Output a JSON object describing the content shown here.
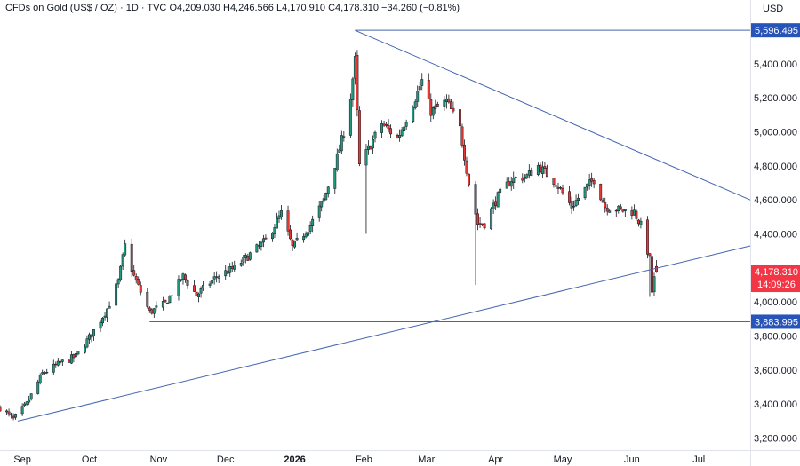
{
  "legend": {
    "symbol": "CFDs on Gold (US$ / OZ)",
    "interval": "1D",
    "source": "TVC",
    "sep": "·",
    "open": "O4,209.030",
    "high": "H4,246.566",
    "low": "L4,170.910",
    "close": "C4,178.310",
    "change": "−34.260 (−0.81%)"
  },
  "currency": "USD",
  "colors": {
    "up": "#22977a",
    "down": "#e53935",
    "trend": "#4565b0",
    "level_badge": "#2853b8",
    "price_badge": "#f23645"
  },
  "chart_data": {
    "type": "candlestick",
    "y_axis": {
      "ticks": [
        3200,
        3400,
        3600,
        3800,
        4000,
        4200,
        4400,
        4600,
        4800,
        5000,
        5200,
        5400
      ],
      "tick_labels": [
        "3,200.000",
        "3,400.000",
        "3,600.000",
        "3,800.000",
        "4,000.000",
        "4,200.000",
        "4,400.000",
        "4,600.000",
        "4,800.000",
        "5,000.000",
        "5,200.000",
        "5,400.000"
      ],
      "range": [
        3130,
        5660
      ]
    },
    "x_axis": {
      "range": [
        "2025-08-22",
        "2026-07-24"
      ],
      "ticks": [
        {
          "date": "2025-09-01",
          "label": "Sep",
          "bold": false
        },
        {
          "date": "2025-10-01",
          "label": "Oct",
          "bold": false
        },
        {
          "date": "2025-11-01",
          "label": "Nov",
          "bold": false
        },
        {
          "date": "2025-12-01",
          "label": "Dec",
          "bold": false
        },
        {
          "date": "2026-01-01",
          "label": "2026",
          "bold": true
        },
        {
          "date": "2026-02-01",
          "label": "Feb",
          "bold": false
        },
        {
          "date": "2026-03-01",
          "label": "Mar",
          "bold": false
        },
        {
          "date": "2026-04-01",
          "label": "Apr",
          "bold": false
        },
        {
          "date": "2026-05-01",
          "label": "May",
          "bold": false
        },
        {
          "date": "2026-06-01",
          "label": "Jun",
          "bold": false
        },
        {
          "date": "2026-07-01",
          "label": "Jul",
          "bold": false
        }
      ]
    },
    "anchors": [
      {
        "date": "2025-08-22",
        "close": 3380
      },
      {
        "date": "2025-08-28",
        "close": 3310
      },
      {
        "date": "2025-09-03",
        "close": 3400
      },
      {
        "date": "2025-09-10",
        "close": 3580
      },
      {
        "date": "2025-09-18",
        "close": 3640
      },
      {
        "date": "2025-09-25",
        "close": 3680
      },
      {
        "date": "2025-10-02",
        "close": 3810
      },
      {
        "date": "2025-10-09",
        "close": 3960
      },
      {
        "date": "2025-10-14",
        "close": 4120
      },
      {
        "date": "2025-10-17",
        "close": 4330
      },
      {
        "date": "2025-10-21",
        "close": 4150
      },
      {
        "date": "2025-10-28",
        "close": 3940
      },
      {
        "date": "2025-11-04",
        "close": 3990
      },
      {
        "date": "2025-11-12",
        "close": 4150
      },
      {
        "date": "2025-11-18",
        "close": 4040
      },
      {
        "date": "2025-11-27",
        "close": 4150
      },
      {
        "date": "2025-12-05",
        "close": 4200
      },
      {
        "date": "2025-12-12",
        "close": 4280
      },
      {
        "date": "2025-12-19",
        "close": 4360
      },
      {
        "date": "2025-12-26",
        "close": 4520
      },
      {
        "date": "2025-12-31",
        "close": 4320
      },
      {
        "date": "2026-01-08",
        "close": 4450
      },
      {
        "date": "2026-01-14",
        "close": 4600
      },
      {
        "date": "2026-01-20",
        "close": 4850
      },
      {
        "date": "2026-01-25",
        "close": 5100
      },
      {
        "date": "2026-01-28",
        "close": 5420
      },
      {
        "date": "2026-01-30",
        "close": 4800
      },
      {
        "date": "2026-02-03",
        "close": 4900
      },
      {
        "date": "2026-02-09",
        "close": 5050
      },
      {
        "date": "2026-02-16",
        "close": 4960
      },
      {
        "date": "2026-02-24",
        "close": 5200
      },
      {
        "date": "2026-02-27",
        "close": 5300
      },
      {
        "date": "2026-03-03",
        "close": 5120
      },
      {
        "date": "2026-03-10",
        "close": 5180
      },
      {
        "date": "2026-03-16",
        "close": 5020
      },
      {
        "date": "2026-03-20",
        "close": 4700
      },
      {
        "date": "2026-03-24",
        "close": 4460
      },
      {
        "date": "2026-03-27",
        "close": 4460
      },
      {
        "date": "2026-04-02",
        "close": 4620
      },
      {
        "date": "2026-04-08",
        "close": 4720
      },
      {
        "date": "2026-04-15",
        "close": 4740
      },
      {
        "date": "2026-04-20",
        "close": 4800
      },
      {
        "date": "2026-04-28",
        "close": 4700
      },
      {
        "date": "2026-05-05",
        "close": 4560
      },
      {
        "date": "2026-05-12",
        "close": 4680
      },
      {
        "date": "2026-05-15",
        "close": 4720
      },
      {
        "date": "2026-05-20",
        "close": 4560
      },
      {
        "date": "2026-05-27",
        "close": 4540
      },
      {
        "date": "2026-06-02",
        "close": 4530
      },
      {
        "date": "2026-06-05",
        "close": 4450
      },
      {
        "date": "2026-06-09",
        "close": 4250
      },
      {
        "date": "2026-06-10",
        "close": 4060
      },
      {
        "date": "2026-06-12",
        "close": 4210
      },
      {
        "date": "2026-06-13",
        "close": 4178.31
      }
    ],
    "last_candle": {
      "date": "2026-06-13",
      "open": 4209.03,
      "high": 4246.566,
      "low": 4170.91,
      "close": 4178.31
    },
    "trendlines": [
      {
        "from": {
          "date": "2025-08-30",
          "price": 3300
        },
        "to": {
          "date": "2026-07-24",
          "price": 4330
        }
      },
      {
        "from": {
          "date": "2026-01-28",
          "price": 5596.495
        },
        "to": {
          "date": "2026-07-24",
          "price": 4600
        }
      }
    ],
    "levels": [
      {
        "price": 5596.495,
        "label": "5,596.495",
        "start": "2026-01-28"
      },
      {
        "price": 3883.995,
        "label": "3,883.995",
        "start": "2025-10-28"
      }
    ],
    "price_badge": {
      "price": 4178.31,
      "label": "4,178.310",
      "countdown": "14:09:26"
    }
  }
}
